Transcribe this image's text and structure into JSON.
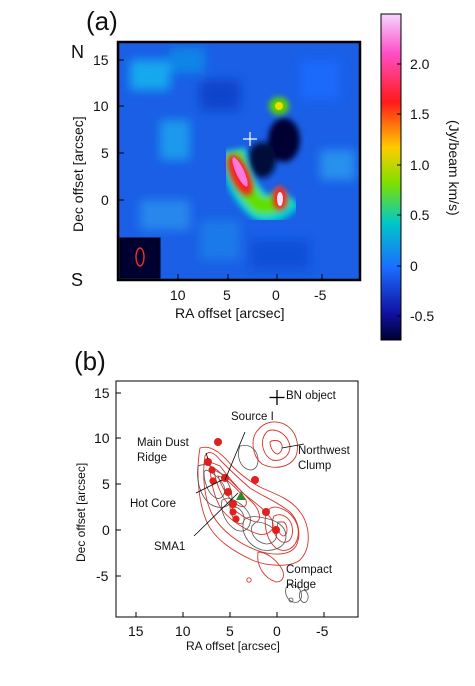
{
  "panel_a": {
    "label": "(a)",
    "north": "N",
    "south": "S",
    "ylabel": "Dec offset [arcsec]",
    "xlabel": "RA offset [arcsec]",
    "yticks": [
      "15",
      "10",
      "5",
      "0"
    ],
    "xticks": [
      "10",
      "5",
      "0",
      "-5"
    ],
    "colorbar": {
      "title": "(Jy/beam km/s)",
      "ticks": [
        "2.0",
        "1.5",
        "1.0",
        "0.5",
        "0",
        "-0.5"
      ],
      "colors": [
        "#f4d6ff",
        "#ff4fc6",
        "#ff1a1a",
        "#ffcc00",
        "#7ee000",
        "#00c8c8",
        "#1a6cff",
        "#1010a0",
        "#000030"
      ]
    }
  },
  "panel_b": {
    "label": "(b)",
    "ylabel": "Dec offset [arcsec]",
    "xlabel": "RA offset [arcsec]",
    "yticks": [
      "15",
      "10",
      "5",
      "0",
      "-5"
    ],
    "xticks": [
      "15",
      "10",
      "5",
      "0",
      "-5"
    ],
    "annotations": {
      "bn": "BN object",
      "source_i": "Source I",
      "main_dust_1": "Main Dust",
      "main_dust_2": "Ridge",
      "northwest_1": "Northwest",
      "northwest_2": "Clump",
      "hot_core": "Hot Core",
      "sma1": "SMA1",
      "compact_1": "Compact",
      "compact_2": "Ridge"
    },
    "marker_colors": {
      "dust_peaks": "#e0201c",
      "sma1": "#2a8a2a",
      "contours_red": "#d9342b",
      "contours_black": "#444444"
    }
  }
}
